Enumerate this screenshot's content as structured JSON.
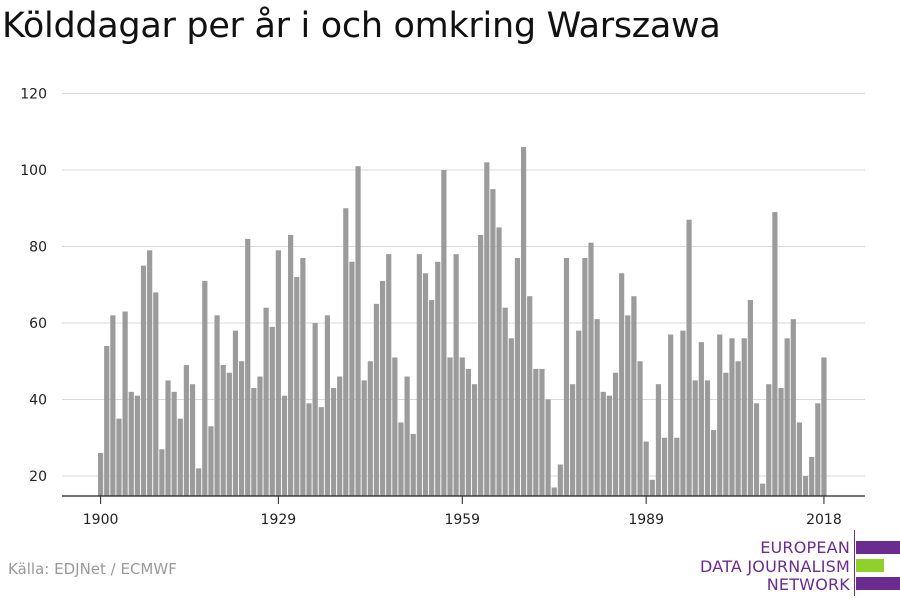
{
  "title": "Kölddagar per år i och omkring Warszawa",
  "source": "Källa: EDJNet / ECMWF",
  "logo": {
    "lines": [
      "EUROPEAN",
      "DATA JOURNALISM",
      "NETWORK"
    ],
    "colors": {
      "purple": "#6b2c8f",
      "green": "#8fd12a"
    }
  },
  "colors": {
    "bar": "#9b9b9b",
    "grid": "#d9d9d9",
    "axis": "#222222"
  },
  "chart_data": {
    "type": "bar",
    "title": "Kölddagar per år i och omkring Warszawa",
    "xlabel": "",
    "ylabel": "",
    "ylim": [
      15,
      120
    ],
    "yticks": [
      20,
      40,
      60,
      80,
      100,
      120
    ],
    "xticks": [
      1900,
      1929,
      1959,
      1989,
      2018
    ],
    "grid": true,
    "x_start": 1900,
    "x": [
      1900,
      1901,
      1902,
      1903,
      1904,
      1905,
      1906,
      1907,
      1908,
      1909,
      1910,
      1911,
      1912,
      1913,
      1914,
      1915,
      1916,
      1917,
      1918,
      1919,
      1920,
      1921,
      1922,
      1923,
      1924,
      1925,
      1926,
      1927,
      1928,
      1929,
      1930,
      1931,
      1932,
      1933,
      1934,
      1935,
      1936,
      1937,
      1938,
      1939,
      1940,
      1941,
      1942,
      1943,
      1944,
      1945,
      1946,
      1947,
      1948,
      1949,
      1950,
      1951,
      1952,
      1953,
      1954,
      1955,
      1956,
      1957,
      1958,
      1959,
      1960,
      1961,
      1962,
      1963,
      1964,
      1965,
      1966,
      1967,
      1968,
      1969,
      1970,
      1971,
      1972,
      1973,
      1974,
      1975,
      1976,
      1977,
      1978,
      1979,
      1980,
      1981,
      1982,
      1983,
      1984,
      1985,
      1986,
      1987,
      1988,
      1989,
      1990,
      1991,
      1992,
      1993,
      1994,
      1995,
      1996,
      1997,
      1998,
      1999,
      2000,
      2001,
      2002,
      2003,
      2004,
      2005,
      2006,
      2007,
      2008,
      2009,
      2010,
      2011,
      2012,
      2013,
      2014,
      2015,
      2016,
      2017,
      2018
    ],
    "values": [
      26,
      54,
      62,
      35,
      63,
      42,
      41,
      75,
      79,
      68,
      27,
      45,
      42,
      35,
      49,
      44,
      22,
      71,
      33,
      62,
      49,
      47,
      58,
      50,
      82,
      43,
      46,
      64,
      59,
      79,
      41,
      83,
      72,
      77,
      39,
      60,
      38,
      62,
      43,
      46,
      90,
      76,
      101,
      45,
      50,
      65,
      71,
      78,
      51,
      34,
      46,
      31,
      78,
      73,
      66,
      76,
      100,
      51,
      78,
      51,
      48,
      44,
      83,
      102,
      95,
      85,
      64,
      56,
      77,
      106,
      67,
      48,
      48,
      40,
      17,
      23,
      77,
      44,
      58,
      77,
      81,
      61,
      42,
      41,
      47,
      73,
      62,
      67,
      50,
      29,
      19,
      44,
      30,
      57,
      30,
      58,
      87,
      45,
      55,
      45,
      32,
      57,
      47,
      56,
      50,
      56,
      66,
      39,
      18,
      44,
      89,
      43,
      56,
      61,
      34,
      20,
      25,
      39,
      51
    ]
  }
}
